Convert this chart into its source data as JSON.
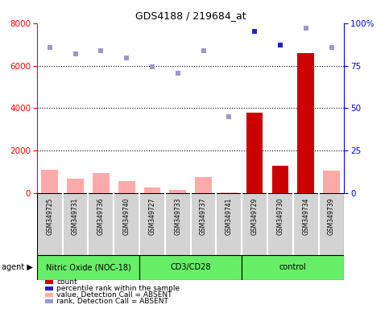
{
  "title": "GDS4188 / 219684_at",
  "samples": [
    "GSM349725",
    "GSM349731",
    "GSM349736",
    "GSM349740",
    "GSM349727",
    "GSM349733",
    "GSM349737",
    "GSM349741",
    "GSM349729",
    "GSM349730",
    "GSM349734",
    "GSM349739"
  ],
  "groups": [
    {
      "name": "Nitric Oxide (NOC-18)",
      "start": 0,
      "end": 4,
      "color": "#66EE66"
    },
    {
      "name": "CD3/CD28",
      "start": 4,
      "end": 8,
      "color": "#66EE66"
    },
    {
      "name": "control",
      "start": 8,
      "end": 12,
      "color": "#66EE66"
    }
  ],
  "count_values": [
    1100,
    700,
    950,
    550,
    250,
    150,
    750,
    50,
    3800,
    1300,
    6600,
    1050
  ],
  "count_is_present": [
    false,
    false,
    false,
    false,
    false,
    false,
    false,
    false,
    true,
    true,
    true,
    false
  ],
  "rank_values": [
    85.6,
    81.9,
    83.8,
    79.4,
    74.4,
    70.6,
    83.8,
    45.0,
    95.0,
    86.9,
    96.9,
    85.6
  ],
  "rank_is_present": [
    false,
    false,
    false,
    false,
    false,
    false,
    false,
    false,
    true,
    true,
    false,
    false
  ],
  "left_ylim": [
    0,
    8000
  ],
  "left_yticks": [
    0,
    2000,
    4000,
    6000,
    8000
  ],
  "right_ylim": [
    0,
    100
  ],
  "right_yticks": [
    0,
    25,
    50,
    75,
    100
  ],
  "bar_color_present": "#cc0000",
  "bar_color_absent": "#ffaaaa",
  "dot_color_present": "#2222cc",
  "dot_color_absent": "#9999cc",
  "legend": [
    {
      "label": "count",
      "color": "#cc0000"
    },
    {
      "label": "percentile rank within the sample",
      "color": "#2222cc"
    },
    {
      "label": "value, Detection Call = ABSENT",
      "color": "#ffaaaa"
    },
    {
      "label": "rank, Detection Call = ABSENT",
      "color": "#9999cc"
    }
  ]
}
